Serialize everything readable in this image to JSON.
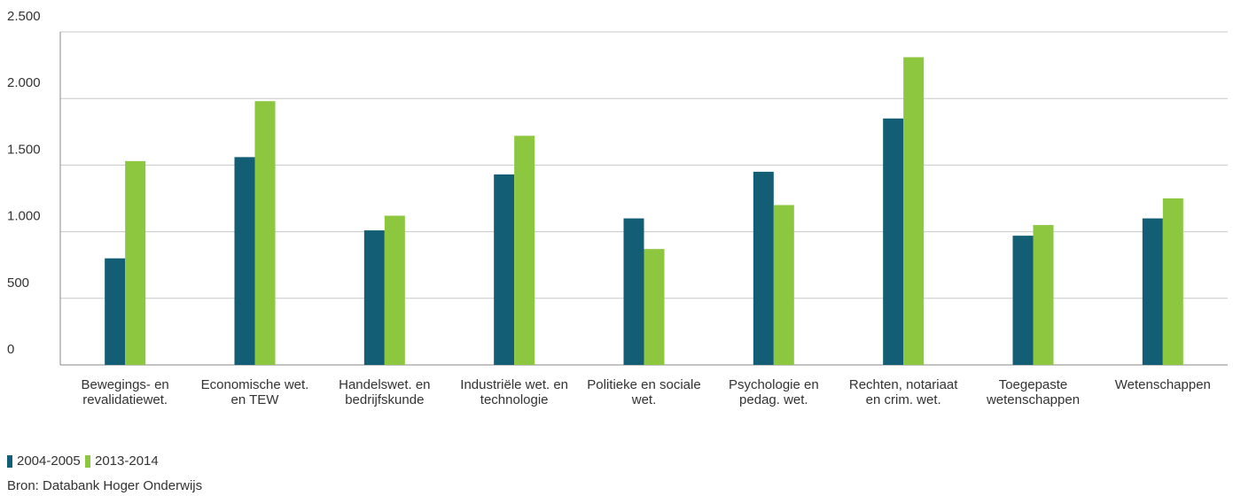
{
  "chart_data": {
    "type": "bar",
    "categories": [
      "Bewegings- en revalidatiewet.",
      "Economische wet. en TEW",
      "Handelswet. en bedrijfskunde",
      "Industriële wet. en technologie",
      "Politieke en sociale wet.",
      "Psychologie en pedag. wet.",
      "Rechten, notariaat en crim. wet.",
      "Toegepaste wetenschappen",
      "Wetenschappen"
    ],
    "series": [
      {
        "name": "2004-2005",
        "color": "#135e74",
        "values": [
          800,
          1560,
          1010,
          1430,
          1100,
          1450,
          1850,
          970,
          1100
        ]
      },
      {
        "name": "2013-2014",
        "color": "#8dc63f",
        "values": [
          1530,
          1980,
          1120,
          1720,
          870,
          1200,
          2310,
          1050,
          1250
        ]
      }
    ],
    "ylim": [
      0,
      2500
    ],
    "yticks": [
      0,
      500,
      {
        "value": 1000,
        "label": "1.000"
      },
      {
        "value": 1500,
        "label": "1.500"
      },
      {
        "value": 2000,
        "label": "2.000"
      },
      {
        "value": 2500,
        "label": "2.500"
      }
    ],
    "grid": true,
    "legend": "bottom-left",
    "source": "Bron: Databank Hoger Onderwijs"
  }
}
